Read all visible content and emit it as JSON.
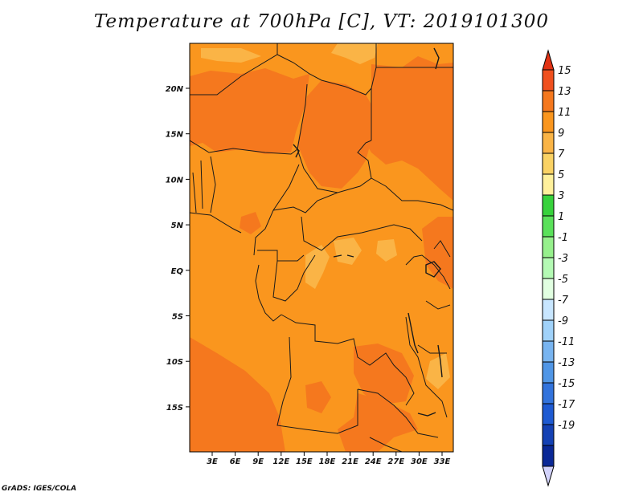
{
  "title": "Temperature at 700hPa [C], VT: 2019101300",
  "credit": "GrADS: IGES/COLA",
  "map": {
    "lat_labels": [
      "20N",
      "15N",
      "10N",
      "5N",
      "EQ",
      "5S",
      "10S",
      "15S"
    ],
    "lon_labels": [
      "3E",
      "6E",
      "9E",
      "12E",
      "15E",
      "18E",
      "21E",
      "24E",
      "27E",
      "30E",
      "33E"
    ]
  },
  "colorbar": {
    "labels": [
      "15",
      "13",
      "11",
      "9",
      "7",
      "5",
      "3",
      "1",
      "-1",
      "-3",
      "-5",
      "-7",
      "-9",
      "-11",
      "-13",
      "-15",
      "-17",
      "-19"
    ],
    "colors": [
      "#e13214",
      "#f0501e",
      "#f5781e",
      "#fa961e",
      "#fab446",
      "#fad264",
      "#fff09b",
      "#37d23c",
      "#5ae15a",
      "#96f08c",
      "#b4fab4",
      "#e1ffe1",
      "#c8e6ff",
      "#a0d2fa",
      "#78b4f0",
      "#5096e6",
      "#3273dc",
      "#1e5ad2",
      "#1441b4",
      "#0a2896",
      "#000a64"
    ],
    "over_color": "#e13214",
    "under_color": "#d2d2fa"
  }
}
